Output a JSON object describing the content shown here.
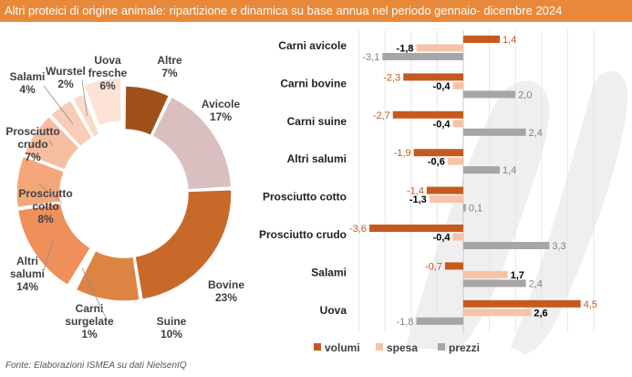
{
  "title": "Altri proteici di origine animale: ripartizione e dinamica su base annua nel periodo gennaio- dicembre 2024",
  "source": "Fonte: Elaborazioni ISMEA su dati NielsenIQ",
  "colors": {
    "accent": "#e8893a",
    "volumi": "#c65a1e",
    "spesa": "#f7c3a6",
    "prezzi": "#a6a6a6",
    "watermark": "#efefef"
  },
  "chart_data": [
    {
      "type": "pie",
      "variant": "donut",
      "title": "",
      "slices": [
        {
          "name": "Altre",
          "value": 7,
          "label": "7%",
          "color": "#a0511b",
          "exploded": false
        },
        {
          "name": "Avicole",
          "value": 17,
          "label": "17%",
          "color": "#d9bfbf",
          "exploded": false
        },
        {
          "name": "Bovine",
          "value": 23,
          "label": "23%",
          "color": "#c8692a",
          "exploded": false
        },
        {
          "name": "Suine",
          "value": 10,
          "label": "10%",
          "color": "#de8442",
          "exploded": false
        },
        {
          "name": "Carni surgelate",
          "value": 1,
          "label": "1%",
          "color": "#ffffff",
          "exploded": false
        },
        {
          "name": "Altri salumi",
          "value": 14,
          "label": "14%",
          "color": "#ef8f5a",
          "exploded": false
        },
        {
          "name": "Prosciutto cotto",
          "value": 8,
          "label": "8%",
          "color": "#f4a77a",
          "exploded": false
        },
        {
          "name": "Prosciutto crudo",
          "value": 7,
          "label": "7%",
          "color": "#f6bda0",
          "exploded": false
        },
        {
          "name": "Salami",
          "value": 4,
          "label": "4%",
          "color": "#f8cdb6",
          "exploded": false
        },
        {
          "name": "Wurstel",
          "value": 2,
          "label": "2%",
          "color": "#fadac9",
          "exploded": false
        },
        {
          "name": "Uova fresche",
          "value": 6,
          "label": "6%",
          "color": "#fce3d6",
          "exploded": true
        }
      ]
    },
    {
      "type": "bar",
      "orientation": "horizontal",
      "title": "",
      "xlabel": "",
      "ylabel": "",
      "xlim": [
        -4,
        5
      ],
      "grid": true,
      "legend": "bottom",
      "categories": [
        "Carni avicole",
        "Carni bovine",
        "Carni suine",
        "Altri salumi",
        "Prosciutto cotto",
        "Prosciutto crudo",
        "Salami",
        "Uova"
      ],
      "series": [
        {
          "name": "volumi",
          "values": [
            1.4,
            -2.3,
            -2.7,
            -1.9,
            -1.4,
            -3.6,
            -0.7,
            4.5
          ],
          "labels": [
            "1,4",
            "-2,3",
            "-2,7",
            "-1,9",
            "-1,4",
            "-3,6",
            "-0,7",
            "4,5"
          ]
        },
        {
          "name": "spesa",
          "values": [
            -1.8,
            -0.4,
            -0.4,
            -0.6,
            -1.3,
            -0.4,
            1.7,
            2.6
          ],
          "labels": [
            "-1,8",
            "-0,4",
            "-0,4",
            "-0,6",
            "-1,3",
            "-0,4",
            "1,7",
            "2,6"
          ]
        },
        {
          "name": "prezzi",
          "values": [
            -3.1,
            2.0,
            2.4,
            1.4,
            0.1,
            3.3,
            2.4,
            -1.8
          ],
          "labels": [
            "-3,1",
            "2,0",
            "2,4",
            "1,4",
            "0,1",
            "3,3",
            "2,4",
            "-1,8"
          ]
        }
      ]
    }
  ]
}
